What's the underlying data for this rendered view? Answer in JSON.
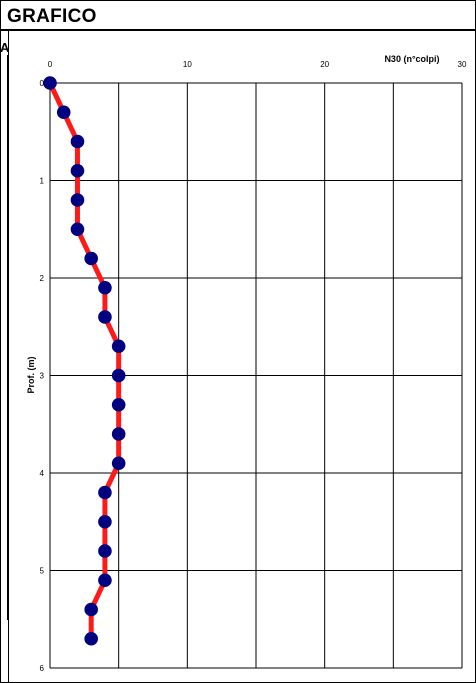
{
  "header": {
    "title": "GRAFICO",
    "left_tab": "A"
  },
  "chart_data": {
    "type": "line",
    "xlabel": "N30 (n°colpi)",
    "ylabel": "Prof. (m)",
    "xlim": [
      0,
      30
    ],
    "ylim": [
      0,
      6
    ],
    "y_inverted": true,
    "x_axis_position": "top",
    "grid": true,
    "x_ticks": [
      "0",
      "10",
      "20",
      "30"
    ],
    "y_ticks": [
      "0",
      "1",
      "2",
      "3",
      "4",
      "5",
      "6"
    ],
    "series": [
      {
        "x": [
          0,
          1,
          2,
          2,
          2,
          2,
          3,
          4,
          4,
          5,
          5,
          5,
          5,
          5,
          4,
          4,
          4,
          4,
          3,
          3
        ],
        "y": [
          0,
          0.3,
          0.6,
          0.9,
          1.2,
          1.5,
          1.8,
          2.1,
          2.4,
          2.7,
          3.0,
          3.3,
          3.6,
          3.9,
          4.2,
          4.5,
          4.8,
          5.1,
          5.4,
          5.7
        ],
        "line_color": "#ff1a1a",
        "marker_color": "#000080"
      }
    ]
  }
}
